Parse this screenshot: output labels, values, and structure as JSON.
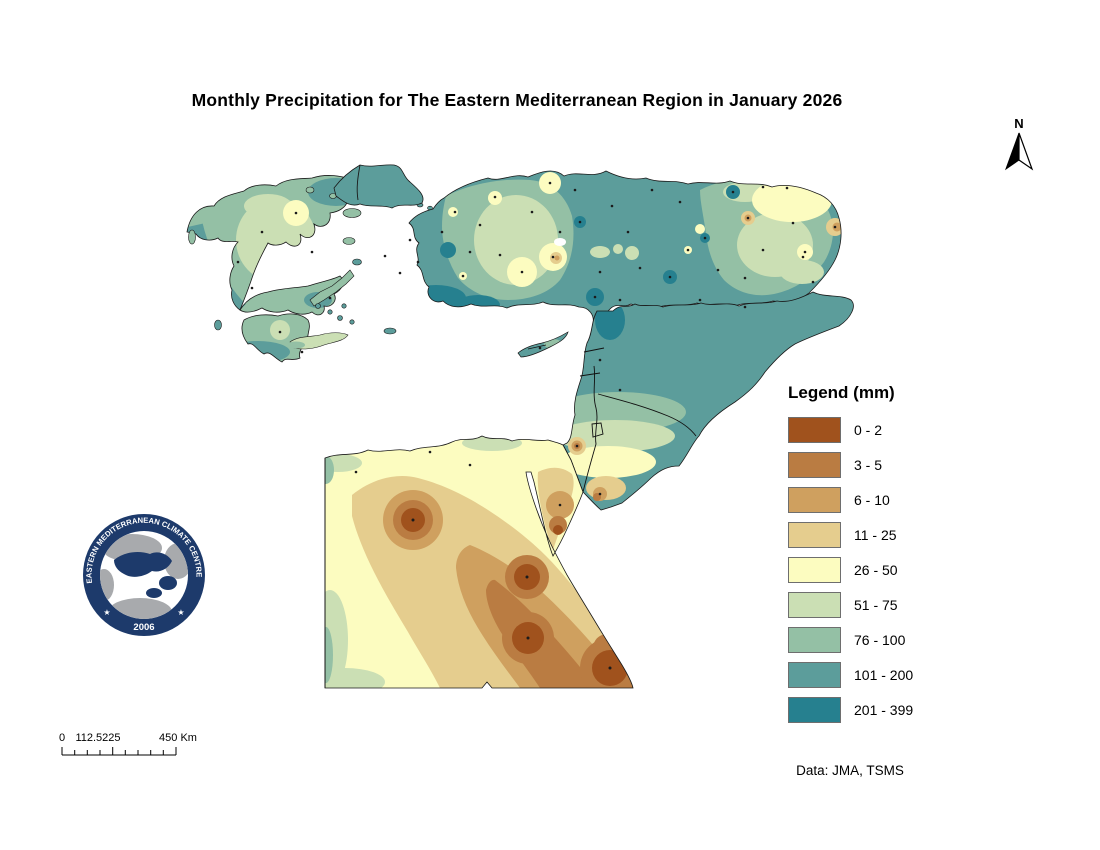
{
  "title": "Monthly Precipitation for The Eastern Mediterranean Region in January 2026",
  "north_arrow": {
    "label": "N"
  },
  "legend": {
    "title": "Legend (mm)",
    "swatch_border_color": "#6E6E6E",
    "classes": [
      {
        "label": "0 - 2",
        "color": "#A0521D"
      },
      {
        "label": "3 - 5",
        "color": "#BA7C42"
      },
      {
        "label": "6 - 10",
        "color": "#CFA05F"
      },
      {
        "label": "11 - 25",
        "color": "#E5CD8E"
      },
      {
        "label": "26 - 50",
        "color": "#FCFCC0"
      },
      {
        "label": "51 - 75",
        "color": "#CBDFB4"
      },
      {
        "label": "76 - 100",
        "color": "#94C0A5"
      },
      {
        "label": "101 - 200",
        "color": "#5C9D9B"
      },
      {
        "label": "201 - 399",
        "color": "#26808F"
      }
    ]
  },
  "scale_bar": {
    "labels": [
      "0",
      "112.5225",
      "450 Km"
    ]
  },
  "logo": {
    "ring_text": "EASTERN MEDITERRANEAN CLIMATE CENTRE",
    "year": "2006",
    "star": "★",
    "ring_color": "#1D3A6B"
  },
  "credit": "Data: JMA, TSMS"
}
